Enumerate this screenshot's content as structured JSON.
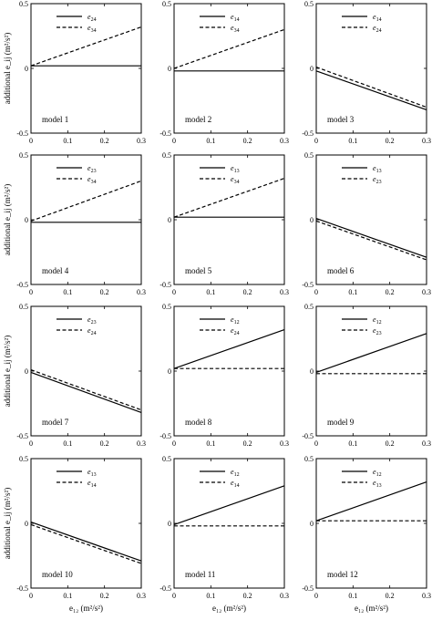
{
  "figure": {
    "ylabel": "additional e_ij  (m²/s²)",
    "xlabel": "e₁₂  (m²/s²)"
  },
  "chart_data": {
    "type": "line",
    "xlim": [
      0,
      0.3
    ],
    "ylim": [
      -0.5,
      0.5
    ],
    "xticks": [
      0,
      0.1,
      0.2,
      0.3
    ],
    "yticks": [
      -0.5,
      0,
      0.5
    ],
    "xtick_labels": [
      "0",
      "0.1",
      "0.2",
      "0.3"
    ],
    "ytick_labels": [
      "-0.5",
      "0",
      "0.5"
    ],
    "grid": false,
    "legend_position": "top-right",
    "panels": [
      {
        "title": "model 1",
        "series": [
          {
            "name": "e24",
            "style": "solid",
            "x": [
              0,
              0.3
            ],
            "y": [
              0.02,
              0.02
            ]
          },
          {
            "name": "e34",
            "style": "dashed",
            "x": [
              0,
              0.3
            ],
            "y": [
              0.02,
              0.32
            ]
          }
        ]
      },
      {
        "title": "model 2",
        "series": [
          {
            "name": "e14",
            "style": "solid",
            "x": [
              0,
              0.3
            ],
            "y": [
              -0.02,
              -0.02
            ]
          },
          {
            "name": "e34",
            "style": "dashed",
            "x": [
              0,
              0.3
            ],
            "y": [
              0,
              0.3
            ]
          }
        ]
      },
      {
        "title": "model 3",
        "series": [
          {
            "name": "e14",
            "style": "solid",
            "x": [
              0,
              0.3
            ],
            "y": [
              -0.02,
              -0.32
            ]
          },
          {
            "name": "e24",
            "style": "dashed",
            "x": [
              0,
              0.3
            ],
            "y": [
              0.01,
              -0.3
            ]
          }
        ]
      },
      {
        "title": "model 4",
        "series": [
          {
            "name": "e23",
            "style": "solid",
            "x": [
              0,
              0.3
            ],
            "y": [
              -0.02,
              -0.02
            ]
          },
          {
            "name": "e34",
            "style": "dashed",
            "x": [
              0,
              0.3
            ],
            "y": [
              -0.01,
              0.3
            ]
          }
        ]
      },
      {
        "title": "model 5",
        "series": [
          {
            "name": "e13",
            "style": "solid",
            "x": [
              0,
              0.3
            ],
            "y": [
              0.02,
              0.02
            ]
          },
          {
            "name": "e34",
            "style": "dashed",
            "x": [
              0,
              0.3
            ],
            "y": [
              0.02,
              0.32
            ]
          }
        ]
      },
      {
        "title": "model 6",
        "series": [
          {
            "name": "e13",
            "style": "solid",
            "x": [
              0,
              0.3
            ],
            "y": [
              0.01,
              -0.29
            ]
          },
          {
            "name": "e23",
            "style": "dashed",
            "x": [
              0,
              0.3
            ],
            "y": [
              -0.01,
              -0.31
            ]
          }
        ]
      },
      {
        "title": "model 7",
        "series": [
          {
            "name": "e23",
            "style": "solid",
            "x": [
              0,
              0.3
            ],
            "y": [
              -0.01,
              -0.32
            ]
          },
          {
            "name": "e24",
            "style": "dashed",
            "x": [
              0,
              0.3
            ],
            "y": [
              0.01,
              -0.3
            ]
          }
        ]
      },
      {
        "title": "model 8",
        "series": [
          {
            "name": "e12",
            "style": "solid",
            "x": [
              0,
              0.3
            ],
            "y": [
              0.02,
              0.32
            ]
          },
          {
            "name": "e24",
            "style": "dashed",
            "x": [
              0,
              0.3
            ],
            "y": [
              0.02,
              0.02
            ]
          }
        ]
      },
      {
        "title": "model 9",
        "series": [
          {
            "name": "e12",
            "style": "solid",
            "x": [
              0,
              0.3
            ],
            "y": [
              -0.01,
              0.29
            ]
          },
          {
            "name": "e23",
            "style": "dashed",
            "x": [
              0,
              0.3
            ],
            "y": [
              -0.02,
              -0.02
            ]
          }
        ]
      },
      {
        "title": "model 10",
        "series": [
          {
            "name": "e13",
            "style": "solid",
            "x": [
              0,
              0.3
            ],
            "y": [
              0.01,
              -0.29
            ]
          },
          {
            "name": "e14",
            "style": "dashed",
            "x": [
              0,
              0.3
            ],
            "y": [
              -0.01,
              -0.31
            ]
          }
        ]
      },
      {
        "title": "model 11",
        "series": [
          {
            "name": "e12",
            "style": "solid",
            "x": [
              0,
              0.3
            ],
            "y": [
              -0.01,
              0.29
            ]
          },
          {
            "name": "e14",
            "style": "dashed",
            "x": [
              0,
              0.3
            ],
            "y": [
              -0.02,
              -0.02
            ]
          }
        ]
      },
      {
        "title": "model 12",
        "series": [
          {
            "name": "e12",
            "style": "solid",
            "x": [
              0,
              0.3
            ],
            "y": [
              0.02,
              0.32
            ]
          },
          {
            "name": "e13",
            "style": "dashed",
            "x": [
              0,
              0.3
            ],
            "y": [
              0.02,
              0.02
            ]
          }
        ]
      }
    ]
  }
}
